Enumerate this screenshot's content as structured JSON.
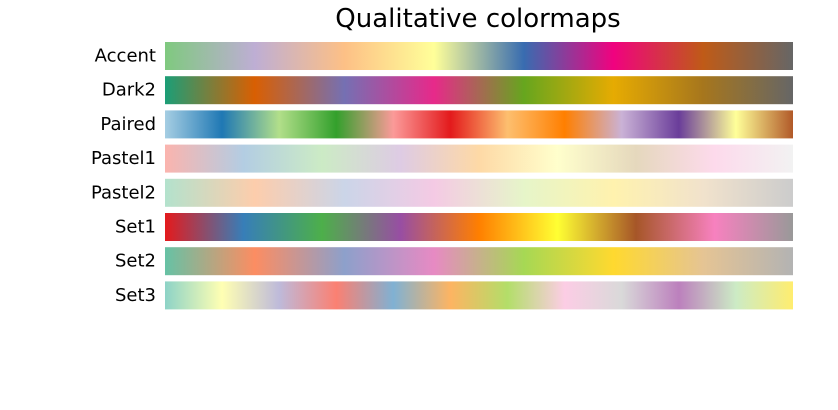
{
  "chart_data": {
    "type": "colormap-swatches",
    "title": "Qualitative colormaps",
    "xlabel": "",
    "ylabel": "",
    "grid": false,
    "legend": "none",
    "colormaps": [
      {
        "name": "Accent",
        "colors": [
          "#7fc97f",
          "#beaed4",
          "#fdc086",
          "#ffff99",
          "#386cb0",
          "#f0027f",
          "#bf5b17",
          "#666666"
        ]
      },
      {
        "name": "Dark2",
        "colors": [
          "#1b9e77",
          "#d95f02",
          "#7570b3",
          "#e7298a",
          "#66a61e",
          "#e6ab02",
          "#a6761d",
          "#666666"
        ]
      },
      {
        "name": "Paired",
        "colors": [
          "#a6cee3",
          "#1f78b4",
          "#b2df8a",
          "#33a02c",
          "#fb9a99",
          "#e31a1c",
          "#fdbf6f",
          "#ff7f00",
          "#cab2d6",
          "#6a3d9a",
          "#ffff99",
          "#b15928"
        ]
      },
      {
        "name": "Pastel1",
        "colors": [
          "#fbb4ae",
          "#b3cde3",
          "#ccebc5",
          "#decbe4",
          "#fed9a6",
          "#ffffcc",
          "#e5d8bd",
          "#fddaec",
          "#f2f2f2"
        ]
      },
      {
        "name": "Pastel2",
        "colors": [
          "#b3e2cd",
          "#fdcdac",
          "#cbd5e8",
          "#f4cae4",
          "#e6f5c9",
          "#fff2ae",
          "#f1e2cc",
          "#cccccc"
        ]
      },
      {
        "name": "Set1",
        "colors": [
          "#e41a1c",
          "#377eb8",
          "#4daf4a",
          "#984ea3",
          "#ff7f00",
          "#ffff33",
          "#a65628",
          "#f781bf",
          "#999999"
        ]
      },
      {
        "name": "Set2",
        "colors": [
          "#66c2a5",
          "#fc8d62",
          "#8da0cb",
          "#e78ac3",
          "#a6d854",
          "#ffd92f",
          "#e5c494",
          "#b3b3b3"
        ]
      },
      {
        "name": "Set3",
        "colors": [
          "#8dd3c7",
          "#ffffb3",
          "#bebada",
          "#fb8072",
          "#80b1d3",
          "#fdb462",
          "#b3de69",
          "#fccde5",
          "#d9d9d9",
          "#bc80bd",
          "#ccebc5",
          "#ffed6f"
        ]
      }
    ]
  }
}
